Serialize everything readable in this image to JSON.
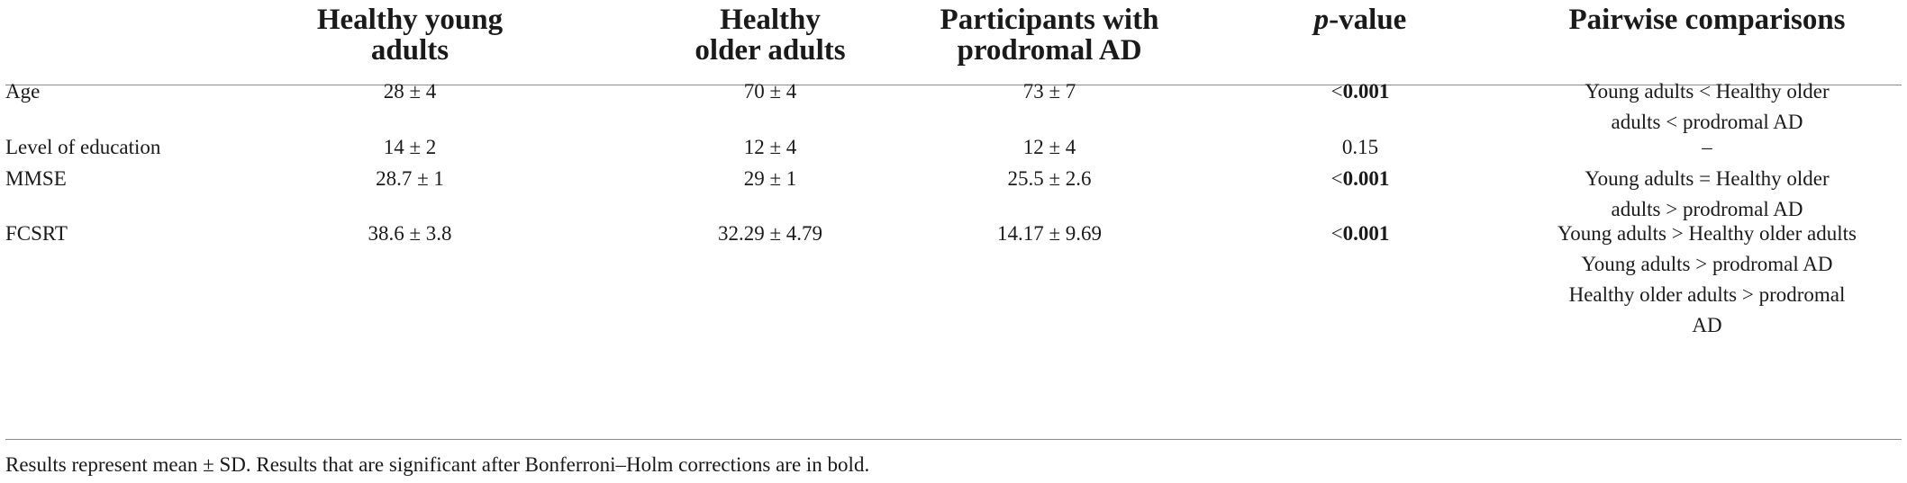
{
  "table": {
    "headers": {
      "col1": [
        "Healthy young",
        "adults"
      ],
      "col2": [
        "Healthy",
        "older adults"
      ],
      "col3": [
        "Participants with",
        "prodromal AD"
      ],
      "col4_italic": "p",
      "col4_rest": "-value",
      "col5": [
        "Pairwise comparisons"
      ]
    },
    "rows": [
      {
        "label": "Age",
        "young": "28 ± 4",
        "older": "70 ± 4",
        "prodromal": "73 ± 7",
        "p_prefix": "<",
        "p_value": "0.001",
        "p_significant": true,
        "comparisons": [
          "Young adults < Healthy older",
          "adults < prodromal AD"
        ]
      },
      {
        "label": "Level of education",
        "young": "14 ± 2",
        "older": "12 ± 4",
        "prodromal": "12 ± 4",
        "p_prefix": "",
        "p_value": "0.15",
        "p_significant": false,
        "comparisons": [
          "–"
        ]
      },
      {
        "label": "MMSE",
        "young": "28.7 ± 1",
        "older": "29 ± 1",
        "prodromal": "25.5 ± 2.6",
        "p_prefix": "<",
        "p_value": "0.001",
        "p_significant": true,
        "comparisons": [
          "Young adults = Healthy older",
          "adults > prodromal AD"
        ]
      },
      {
        "label": "FCSRT",
        "young": "38.6 ± 3.8",
        "older": "32.29 ± 4.79",
        "prodromal": "14.17 ± 9.69",
        "p_prefix": "<",
        "p_value": "0.001",
        "p_significant": true,
        "comparisons": [
          "Young adults > Healthy older adults",
          "Young adults > prodromal AD",
          "Healthy older adults > prodromal",
          "AD"
        ]
      }
    ]
  },
  "footnote": "Results represent mean ± SD. Results that are significant after Bonferroni–Holm corrections are in bold."
}
